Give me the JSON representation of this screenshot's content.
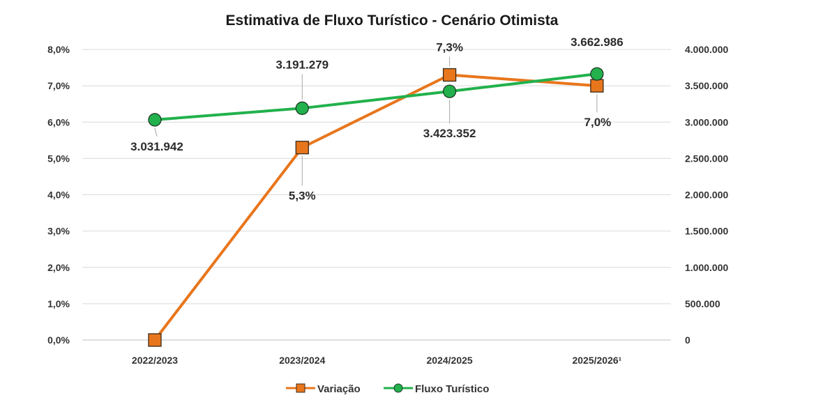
{
  "chart_data": {
    "type": "line",
    "title": "Estimativa de Fluxo Turístico - Cenário Otimista",
    "categories": [
      "2022/2023",
      "2023/2024",
      "2024/2025",
      "2025/2026¹"
    ],
    "y_left": {
      "min": 0,
      "max": 8,
      "step": 1,
      "ticks": [
        "0,0%",
        "1,0%",
        "2,0%",
        "3,0%",
        "4,0%",
        "5,0%",
        "6,0%",
        "7,0%",
        "8,0%"
      ]
    },
    "y_right": {
      "min": 0,
      "max": 4000000,
      "step": 500000,
      "ticks": [
        "0",
        "500.000",
        "1.000.000",
        "1.500.000",
        "2.000.000",
        "2.500.000",
        "3.000.000",
        "3.500.000",
        "4.000.000"
      ]
    },
    "grid": true,
    "legend_position": "bottom",
    "series": [
      {
        "name": "Variação",
        "axis": "left",
        "color": "#E8761C",
        "marker": "square",
        "values": [
          0.0,
          5.3,
          7.3,
          7.0
        ],
        "labels": [
          null,
          "5,3%",
          "7,3%",
          "7,0%"
        ]
      },
      {
        "name": "Fluxo Turístico",
        "axis": "right",
        "color": "#22B14C",
        "marker": "circle",
        "values": [
          3031942,
          3191279,
          3423352,
          3662986
        ],
        "labels": [
          "3.031.942",
          "3.191.279",
          "3.423.352",
          "3.662.986"
        ]
      }
    ]
  }
}
